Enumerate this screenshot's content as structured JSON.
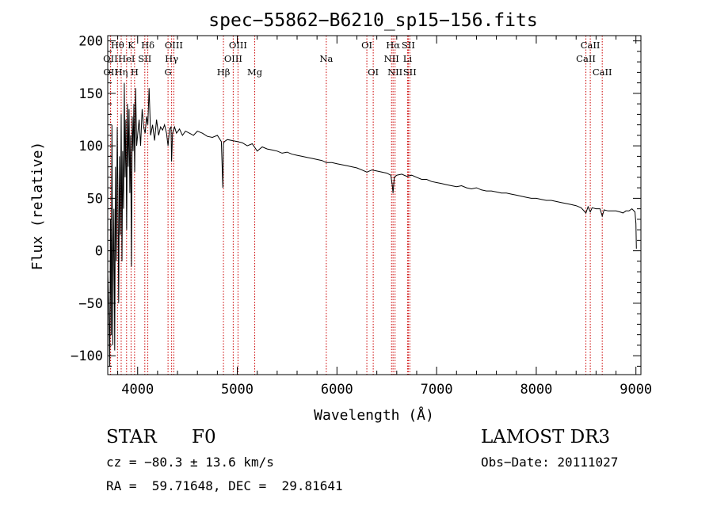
{
  "chart_data": {
    "type": "line",
    "title": "spec−55862−B6210_sp15−156.fits",
    "xlabel": "Wavelength (Å)",
    "ylabel": "Flux (relative)",
    "xlim": [
      3700,
      9050
    ],
    "ylim": [
      -118,
      205
    ],
    "xticks": [
      4000,
      5000,
      6000,
      7000,
      8000,
      9000
    ],
    "xtick_labels": [
      "4000",
      "5000",
      "6000",
      "7000",
      "8000",
      "9000"
    ],
    "yticks": [
      -100,
      -50,
      0,
      50,
      100,
      150,
      200
    ],
    "ytick_labels": [
      "−100",
      "−50",
      "0",
      "50",
      "100",
      "150",
      "200"
    ],
    "spectral_lines": [
      {
        "name": "Hθ",
        "wavelength": 3798,
        "row": 1
      },
      {
        "name": "OII",
        "wavelength": 3727,
        "row": 2
      },
      {
        "name": "OII",
        "wavelength": 3729,
        "row": 3
      },
      {
        "name": "Hη",
        "wavelength": 3835,
        "row": 3
      },
      {
        "name": "HeI",
        "wavelength": 3889,
        "row": 2
      },
      {
        "name": "K",
        "wavelength": 3934,
        "row": 1
      },
      {
        "name": "SII",
        "wavelength": 4072,
        "row": 2
      },
      {
        "name": "H",
        "wavelength": 3969,
        "row": 3
      },
      {
        "name": "Hδ",
        "wavelength": 4102,
        "row": 1
      },
      {
        "name": "OIII",
        "wavelength": 4363,
        "row": 1
      },
      {
        "name": "Hγ",
        "wavelength": 4341,
        "row": 2
      },
      {
        "name": "G",
        "wavelength": 4305,
        "row": 3
      },
      {
        "name": "Hβ",
        "wavelength": 4861,
        "row": 3
      },
      {
        "name": "OIII",
        "wavelength": 5007,
        "row": 1
      },
      {
        "name": "OIII",
        "wavelength": 4959,
        "row": 2
      },
      {
        "name": "Mg",
        "wavelength": 5175,
        "row": 3
      },
      {
        "name": "Na",
        "wavelength": 5893,
        "row": 2
      },
      {
        "name": "OI",
        "wavelength": 6300,
        "row": 1
      },
      {
        "name": "OI",
        "wavelength": 6364,
        "row": 3
      },
      {
        "name": "Hα",
        "wavelength": 6563,
        "row": 1
      },
      {
        "name": "NII",
        "wavelength": 6548,
        "row": 2
      },
      {
        "name": "NII",
        "wavelength": 6583,
        "row": 3
      },
      {
        "name": "SII",
        "wavelength": 6716,
        "row": 1
      },
      {
        "name": "Li",
        "wavelength": 6708,
        "row": 2
      },
      {
        "name": "SII",
        "wavelength": 6731,
        "row": 3
      },
      {
        "name": "CaII",
        "wavelength": 8542,
        "row": 1
      },
      {
        "name": "CaII",
        "wavelength": 8498,
        "row": 2
      },
      {
        "name": "CaII",
        "wavelength": 8662,
        "row": 3
      }
    ],
    "series": [
      {
        "name": "flux",
        "x": [
          3700,
          3712,
          3720,
          3728,
          3735,
          3742,
          3750,
          3756,
          3762,
          3770,
          3778,
          3786,
          3795,
          3802,
          3810,
          3818,
          3826,
          3835,
          3843,
          3850,
          3858,
          3866,
          3874,
          3882,
          3890,
          3898,
          3906,
          3914,
          3922,
          3930,
          3938,
          3946,
          3954,
          3962,
          3970,
          3980,
          3990,
          4000,
          4015,
          4030,
          4045,
          4060,
          4075,
          4090,
          4102,
          4115,
          4130,
          4150,
          4170,
          4190,
          4210,
          4230,
          4250,
          4270,
          4290,
          4305,
          4320,
          4335,
          4341,
          4350,
          4370,
          4390,
          4420,
          4450,
          4480,
          4520,
          4560,
          4600,
          4650,
          4700,
          4750,
          4800,
          4840,
          4855,
          4861,
          4870,
          4900,
          4950,
          5000,
          5050,
          5100,
          5150,
          5200,
          5250,
          5300,
          5350,
          5400,
          5450,
          5500,
          5550,
          5600,
          5650,
          5700,
          5750,
          5800,
          5850,
          5893,
          5950,
          6000,
          6050,
          6100,
          6150,
          6200,
          6250,
          6300,
          6350,
          6400,
          6450,
          6500,
          6540,
          6555,
          6563,
          6575,
          6600,
          6650,
          6700,
          6750,
          6800,
          6850,
          6900,
          6950,
          7000,
          7050,
          7100,
          7150,
          7200,
          7250,
          7300,
          7350,
          7400,
          7450,
          7500,
          7550,
          7600,
          7650,
          7700,
          7750,
          7800,
          7850,
          7900,
          7950,
          8000,
          8050,
          8100,
          8150,
          8200,
          8250,
          8300,
          8350,
          8400,
          8450,
          8498,
          8520,
          8542,
          8560,
          8600,
          8640,
          8662,
          8680,
          8720,
          8760,
          8800,
          8840,
          8870,
          8900,
          8930,
          8960,
          8990,
          9000,
          9005
        ],
        "y": [
          -20,
          -60,
          -110,
          30,
          -80,
          120,
          -90,
          -5,
          40,
          -95,
          80,
          -10,
          118,
          60,
          -50,
          90,
          15,
          130,
          -10,
          95,
          40,
          160,
          70,
          125,
          20,
          140,
          80,
          135,
          55,
          110,
          -15,
          128,
          95,
          140,
          75,
          155,
          100,
          110,
          125,
          100,
          135,
          118,
          112,
          128,
          120,
          155,
          110,
          120,
          105,
          125,
          110,
          118,
          115,
          120,
          112,
          100,
          116,
          118,
          85,
          112,
          118,
          112,
          116,
          110,
          114,
          112,
          110,
          114,
          112,
          109,
          108,
          110,
          104,
          60,
          102,
          104,
          106,
          105,
          104,
          103,
          100,
          102,
          95,
          99,
          97,
          96,
          95,
          93,
          94,
          92,
          91,
          90,
          89,
          88,
          87,
          86,
          84,
          84,
          83,
          82,
          81,
          80,
          79,
          77,
          75,
          77,
          76,
          75,
          74,
          72,
          63,
          55,
          70,
          72,
          73,
          71,
          72,
          70,
          68,
          68,
          66,
          65,
          64,
          63,
          62,
          61,
          62,
          60,
          59,
          60,
          58,
          57,
          57,
          56,
          55,
          55,
          54,
          53,
          52,
          51,
          50,
          50,
          49,
          48,
          48,
          47,
          46,
          45,
          44,
          43,
          41,
          36,
          42,
          37,
          41,
          40,
          40,
          33,
          39,
          38,
          38,
          38,
          37,
          36,
          38,
          38,
          40,
          37,
          26,
          2
        ]
      }
    ]
  },
  "info": {
    "object_class": "STAR",
    "subclass": "F0",
    "survey": "LAMOST DR3",
    "cz": "cz = −80.3 ± 13.6 km/s",
    "obs_date": "Obs−Date: 20111027",
    "radec": "RA =  59.71648, DEC =  29.81641"
  }
}
